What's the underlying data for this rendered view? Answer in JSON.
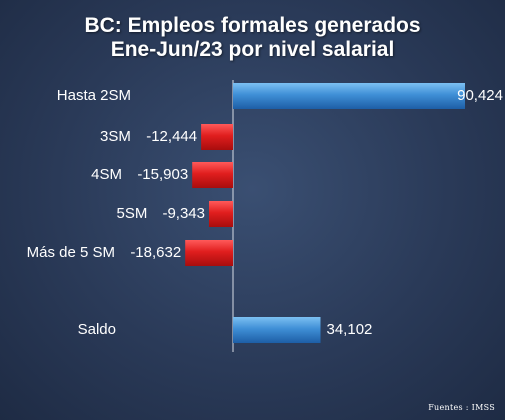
{
  "chart_data": {
    "type": "bar",
    "orientation": "horizontal",
    "title": "BC: Empleos formales generados",
    "subtitle": "Ene-Jun/23  por nivel salarial",
    "categories": [
      "Hasta 2SM",
      "3SM",
      "4SM",
      "5SM",
      "Más de 5 SM",
      "Saldo"
    ],
    "values": [
      90424,
      -12444,
      -15903,
      -9343,
      -18632,
      34102
    ],
    "value_labels": [
      "90,424",
      "-12,444",
      "-15,903",
      "-9,343",
      "-18,632",
      "34,102"
    ],
    "colors": {
      "positive": "#3f8fd6",
      "negative": "#e01e1e",
      "background": "#2f4263"
    },
    "source": "Fuentes : IMSS"
  }
}
